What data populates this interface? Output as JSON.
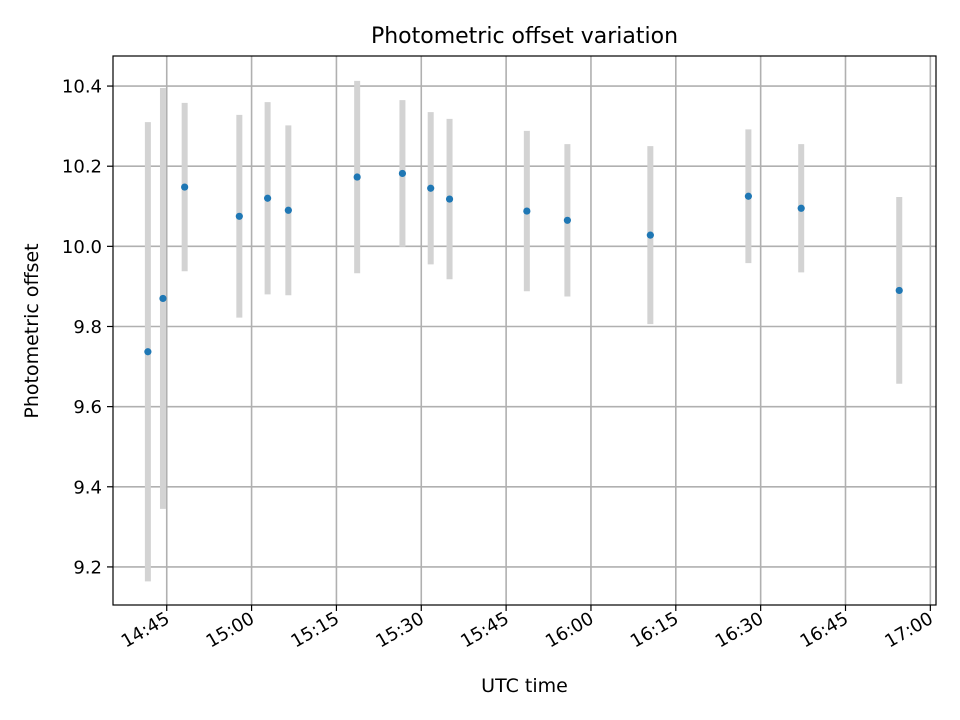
{
  "chart_data": {
    "type": "scatter",
    "title": "Photometric offset variation",
    "xlabel": "UTC time",
    "ylabel": "Photometric offset",
    "x_ticks": [
      "14:45",
      "15:00",
      "15:15",
      "15:30",
      "15:45",
      "16:00",
      "16:15",
      "16:30",
      "16:45",
      "17:00"
    ],
    "y_ticks": [
      "9.2",
      "9.4",
      "9.6",
      "9.8",
      "10.0",
      "10.2",
      "10.4"
    ],
    "xlim": [
      "14:35:30",
      "17:01:00"
    ],
    "ylim": [
      9.105,
      10.475
    ],
    "grid": true,
    "marker_color": "#1f77b4",
    "errorbar_color": "#d3d3d3",
    "points": [
      {
        "x": "14:41:40",
        "y": 9.737,
        "err": 0.573
      },
      {
        "x": "14:44:20",
        "y": 9.87,
        "err": 0.525
      },
      {
        "x": "14:48:10",
        "y": 10.148,
        "err": 0.21
      },
      {
        "x": "14:57:50",
        "y": 10.075,
        "err": 0.253
      },
      {
        "x": "15:02:50",
        "y": 10.12,
        "err": 0.24
      },
      {
        "x": "15:06:30",
        "y": 10.09,
        "err": 0.212
      },
      {
        "x": "15:18:40",
        "y": 10.173,
        "err": 0.24
      },
      {
        "x": "15:26:40",
        "y": 10.182,
        "err": 0.183
      },
      {
        "x": "15:31:40",
        "y": 10.145,
        "err": 0.19
      },
      {
        "x": "15:35:00",
        "y": 10.118,
        "err": 0.2
      },
      {
        "x": "15:48:40",
        "y": 10.088,
        "err": 0.2
      },
      {
        "x": "15:55:50",
        "y": 10.065,
        "err": 0.19
      },
      {
        "x": "16:10:30",
        "y": 10.028,
        "err": 0.222
      },
      {
        "x": "16:27:50",
        "y": 10.125,
        "err": 0.167
      },
      {
        "x": "16:37:10",
        "y": 10.095,
        "err": 0.16
      },
      {
        "x": "16:54:30",
        "y": 9.89,
        "err": 0.233
      }
    ]
  }
}
